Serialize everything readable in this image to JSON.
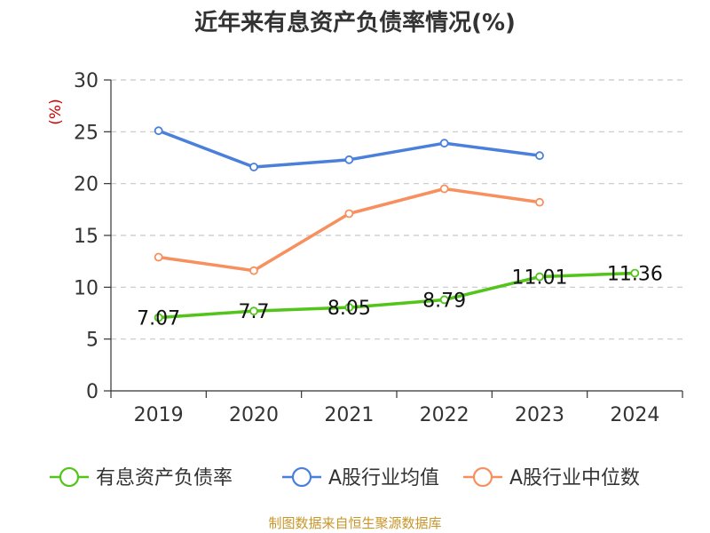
{
  "source_note": "制图数据来自恒生聚源数据库",
  "chart_data": {
    "type": "line",
    "title": "近年来有息资产负债率情况(%)",
    "ylabel": "(%)",
    "xlabel": "",
    "categories": [
      "2019",
      "2020",
      "2021",
      "2022",
      "2023",
      "2024"
    ],
    "ylim": [
      0,
      30
    ],
    "yticks": [
      0,
      5,
      10,
      15,
      20,
      25,
      30
    ],
    "grid": true,
    "legend_position": "bottom",
    "series": [
      {
        "name": "有息资产负债率",
        "color": "#52c41a",
        "values": [
          7.07,
          7.7,
          8.05,
          8.79,
          11.01,
          11.36
        ],
        "labels": [
          "7.07",
          "7.7",
          "8.05",
          "8.79",
          "11.01",
          "11.36"
        ],
        "show_labels": true
      },
      {
        "name": "A股行业均值",
        "color": "#4a7fdb",
        "values": [
          25.1,
          21.6,
          22.3,
          23.9,
          22.7,
          null
        ],
        "show_labels": false
      },
      {
        "name": "A股行业中位数",
        "color": "#f7905e",
        "values": [
          12.9,
          11.6,
          17.1,
          19.5,
          18.2,
          null
        ],
        "show_labels": false
      }
    ]
  }
}
